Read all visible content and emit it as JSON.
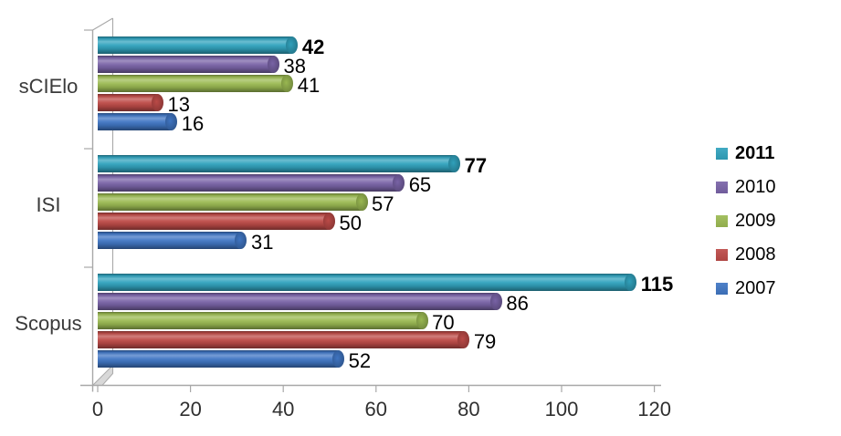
{
  "chart_data": {
    "type": "bar",
    "orientation": "horizontal",
    "style": "3d-cylinder",
    "title": "",
    "xlabel": "",
    "ylabel": "",
    "categories": [
      "sCIElo",
      "ISI",
      "Scopus"
    ],
    "series": [
      {
        "name": "2011",
        "color": "#31A3BE",
        "values": [
          42,
          77,
          115
        ],
        "bold": true
      },
      {
        "name": "2010",
        "color": "#7A64A8",
        "values": [
          38,
          65,
          86
        ],
        "bold": false
      },
      {
        "name": "2009",
        "color": "#9CBB53",
        "values": [
          41,
          57,
          70
        ],
        "bold": false
      },
      {
        "name": "2008",
        "color": "#BE4B48",
        "values": [
          13,
          50,
          79
        ],
        "bold": false
      },
      {
        "name": "2007",
        "color": "#4076C4",
        "values": [
          16,
          31,
          52
        ],
        "bold": false
      }
    ],
    "x_ticks": [
      0,
      20,
      40,
      60,
      80,
      100,
      120
    ],
    "xlim": [
      0,
      120
    ],
    "grid": false,
    "legend_position": "right",
    "data_labels": true,
    "axis_line_color": "#A8A8A8",
    "background_color": "#FFFFFF"
  }
}
